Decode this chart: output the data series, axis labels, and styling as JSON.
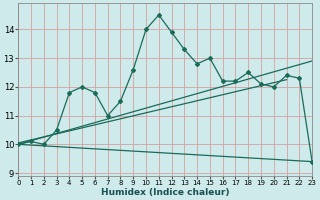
{
  "xlabel": "Humidex (Indice chaleur)",
  "background_color": "#ceeaea",
  "grid_color": "#d4a0a0",
  "line_color": "#1a6b5a",
  "xlim": [
    0,
    23
  ],
  "ylim": [
    8.9,
    14.9
  ],
  "xticks": [
    0,
    1,
    2,
    3,
    4,
    5,
    6,
    7,
    8,
    9,
    10,
    11,
    12,
    13,
    14,
    15,
    16,
    17,
    18,
    19,
    20,
    21,
    22,
    23
  ],
  "yticks": [
    9,
    10,
    11,
    12,
    13,
    14
  ],
  "line1_x": [
    0,
    1,
    2,
    3,
    4,
    5,
    6,
    7,
    8,
    9,
    10,
    11,
    12,
    13,
    14,
    15,
    16,
    17,
    18,
    19,
    20,
    21,
    22,
    23
  ],
  "line1_y": [
    10.0,
    10.1,
    10.0,
    10.5,
    11.8,
    12.0,
    11.8,
    11.0,
    11.5,
    12.6,
    14.0,
    14.5,
    13.9,
    13.3,
    12.8,
    13.0,
    12.2,
    12.2,
    12.5,
    12.1,
    12.0,
    12.4,
    12.3,
    9.4
  ],
  "line2_x": [
    0,
    23
  ],
  "line2_y": [
    10.0,
    12.9
  ],
  "line3_x": [
    0,
    23
  ],
  "line3_y": [
    10.0,
    9.4
  ],
  "line4_x": [
    0,
    21
  ],
  "line4_y": [
    10.05,
    12.25
  ]
}
